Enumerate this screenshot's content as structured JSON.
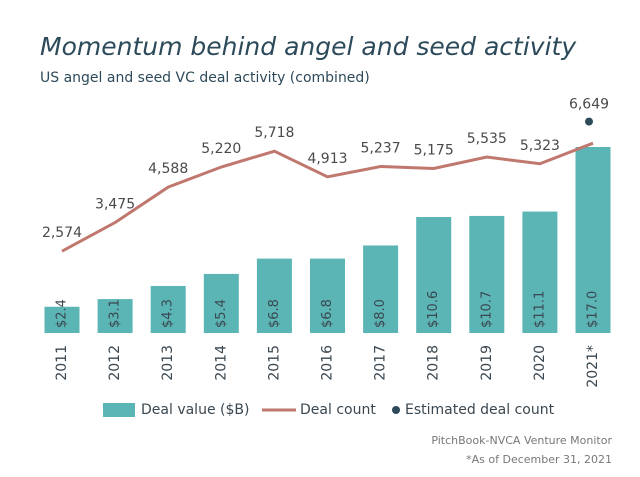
{
  "chart_data": {
    "type": "bar",
    "title": "Momentum behind angel and seed activity",
    "subtitle": "US angel and seed VC deal activity (combined)",
    "categories": [
      "2011",
      "2012",
      "2013",
      "2014",
      "2015",
      "2016",
      "2017",
      "2018",
      "2019",
      "2020",
      "2021*"
    ],
    "series": [
      {
        "name": "Deal value ($B)",
        "type": "bar",
        "color": "#5bb5b5",
        "values": [
          2.4,
          3.1,
          4.3,
          5.4,
          6.8,
          6.8,
          8.0,
          10.6,
          10.7,
          11.1,
          17.0
        ],
        "value_labels": [
          "$2.4",
          "$3.1",
          "$4.3",
          "$5.4",
          "$6.8",
          "$6.8",
          "$8.0",
          "$10.6",
          "$10.7",
          "$11.1",
          "$17.0"
        ]
      },
      {
        "name": "Deal count",
        "type": "line",
        "axis": "y2",
        "color": "#c0776e",
        "values": [
          2574,
          3475,
          4588,
          5220,
          5718,
          4913,
          5237,
          5175,
          5535,
          5323,
          5970
        ],
        "value_labels": [
          "2,574",
          "3,475",
          "4,588",
          "5,220",
          "5,718",
          "4,913",
          "5,237",
          "5,175",
          "5,535",
          "5,323",
          null
        ]
      },
      {
        "name": "Estimated deal count",
        "type": "scatter",
        "axis": "y2",
        "color": "#2d4a5a",
        "values": [
          null,
          null,
          null,
          null,
          null,
          null,
          null,
          null,
          null,
          null,
          6649
        ],
        "value_labels": [
          null,
          null,
          null,
          null,
          null,
          null,
          null,
          null,
          null,
          null,
          "6,649"
        ]
      }
    ],
    "ylim": [
      0,
      17
    ],
    "y2lim": [
      0,
      5850
    ],
    "grid": false,
    "legend": "bottom",
    "source": "PitchBook-NVCA Venture Monitor",
    "note": "*As of December 31, 2021"
  }
}
